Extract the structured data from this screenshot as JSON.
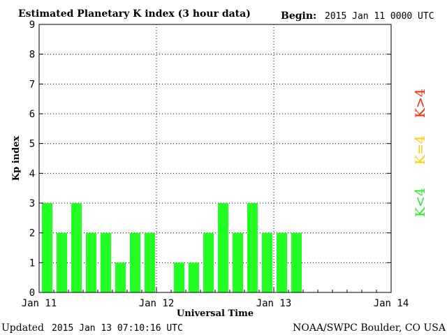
{
  "header": {
    "title": "Estimated Planetary K index (3 hour data)",
    "begin_label": "Begin:",
    "begin_value": "2015 Jan 11 0000 UTC"
  },
  "footer": {
    "updated_label": "Updated",
    "updated_value": "2015 Jan 13 07:10:16 UTC",
    "credit": "NOAA/SWPC Boulder, CO USA"
  },
  "legend": {
    "high": {
      "text": "K>4",
      "color": "#ff2200"
    },
    "mid": {
      "text": "K=4",
      "color": "#ffcc00"
    },
    "low": {
      "text": "K<4",
      "color": "#22ee22"
    }
  },
  "chart_data": {
    "type": "bar",
    "xlabel": "Universal Time",
    "ylabel": "Kp index",
    "ylim": [
      0,
      9
    ],
    "yticks": [
      0,
      1,
      2,
      3,
      4,
      5,
      6,
      7,
      8,
      9
    ],
    "xticks": [
      "Jan 11",
      "Jan 12",
      "Jan 13",
      "Jan 14"
    ],
    "slots_per_day": 8,
    "bar_color": "#22ff22",
    "grid": "dotted",
    "values": [
      3,
      2,
      3,
      2,
      2,
      1,
      2,
      2,
      0,
      1,
      1,
      2,
      3,
      2,
      3,
      2,
      2,
      2
    ]
  }
}
